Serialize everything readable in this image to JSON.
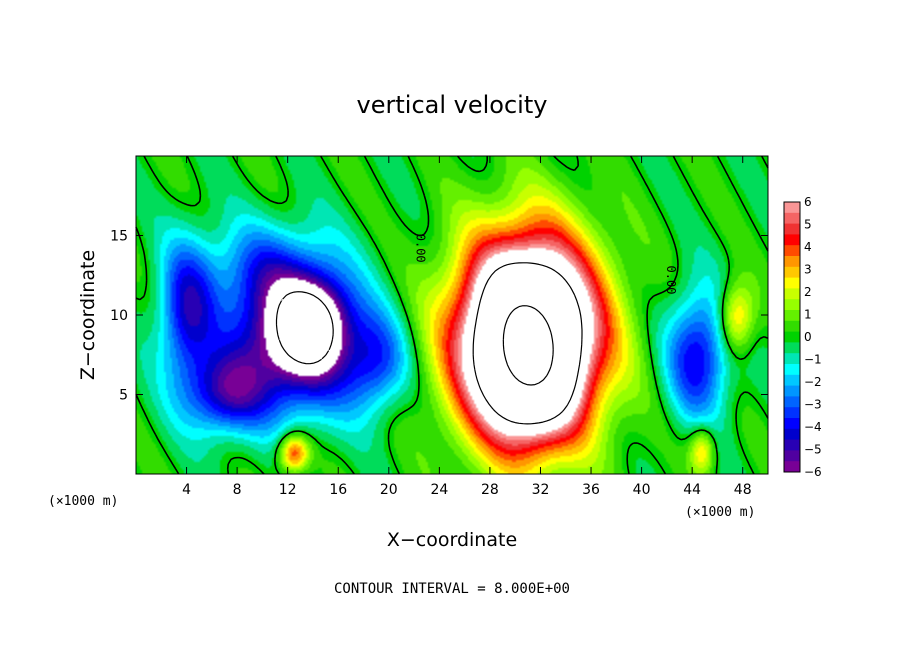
{
  "chart_data": {
    "type": "heatmap",
    "title": "vertical velocity",
    "xlabel": "X−coordinate",
    "ylabel": "Z−coordinate",
    "x_unit": "(×1000 m)",
    "y_unit": "(×1000 m)",
    "footer": "CONTOUR INTERVAL = 8.000E+00",
    "xlim": [
      0,
      50
    ],
    "ylim": [
      0,
      20
    ],
    "x_ticks": [
      4,
      8,
      12,
      16,
      20,
      24,
      28,
      32,
      36,
      40,
      44,
      48
    ],
    "x_tick_labels": [
      "4",
      "8",
      "12",
      "16",
      "20",
      "24",
      "28",
      "32",
      "36",
      "40",
      "44",
      "48"
    ],
    "y_ticks": [
      5,
      10,
      15
    ],
    "y_tick_labels": [
      "5",
      "10",
      "15"
    ],
    "colorbar": {
      "min": -6,
      "max": 6,
      "labels": [
        "6",
        "5",
        "4",
        "3",
        "2",
        "1",
        "0",
        "−1",
        "−2",
        "−3",
        "−4",
        "−5",
        "−6"
      ],
      "colors": [
        "#fa9696",
        "#f56464",
        "#f03232",
        "#ff0000",
        "#ff4b00",
        "#ff9600",
        "#ffc800",
        "#ffff00",
        "#c8ff00",
        "#96ff00",
        "#64f000",
        "#32dc00",
        "#00d200",
        "#00dc5a",
        "#00e6b4",
        "#00ffff",
        "#00c8ff",
        "#0096ff",
        "#0064ff",
        "#0032ff",
        "#0000ff",
        "#0000cd",
        "#2800b4",
        "#5000a0",
        "#780096"
      ]
    },
    "contour_labels": [
      "0.00",
      "0.00"
    ],
    "features": [
      {
        "name": "downdraft-west",
        "x": 12,
        "z": 9,
        "w": -9
      },
      {
        "name": "updraft-core",
        "x": 31,
        "z": 8.5,
        "w": 12
      },
      {
        "name": "downdraft-east",
        "x": 45,
        "z": 8,
        "w": -4
      },
      {
        "name": "positive-east",
        "x": 48,
        "z": 10,
        "w": 2.5
      },
      {
        "name": "positive-surface",
        "x": 12.5,
        "z": 1.2,
        "w": 4
      }
    ]
  }
}
